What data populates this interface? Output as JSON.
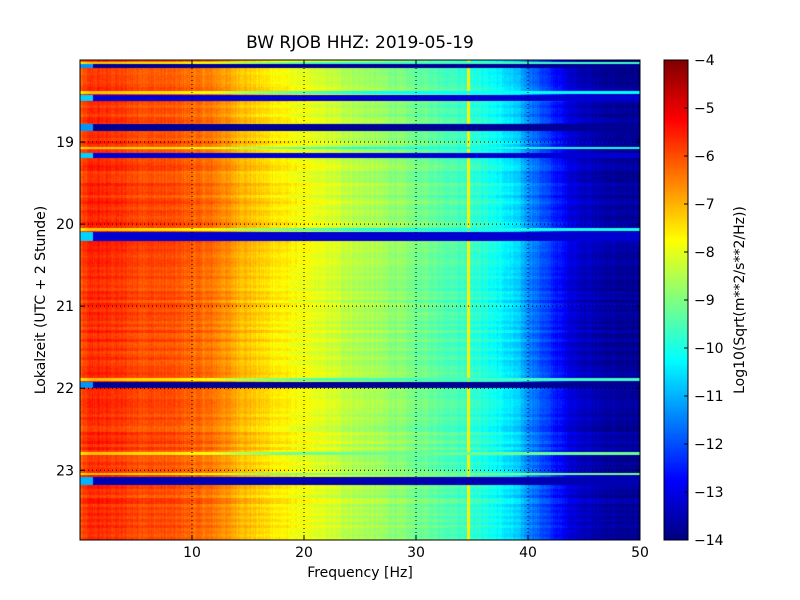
{
  "chart_data": {
    "type": "heatmap",
    "title": "BW RJOB HHZ: 2019-05-19",
    "xlabel": "Frequency [Hz]",
    "ylabel": "Lokalzeit (UTC + 2 Stunde)",
    "colorbar_label": "Log10(Sqrt(m**2/s**2/Hz))",
    "colormap": "jet",
    "xlim": [
      0,
      50
    ],
    "ylim": [
      18.0,
      23.85
    ],
    "y_inverted": true,
    "clim": [
      -14,
      -4
    ],
    "x_ticks": [
      10,
      20,
      30,
      40,
      50
    ],
    "x_tick_labels": [
      "10",
      "20",
      "30",
      "40",
      "50"
    ],
    "y_ticks": [
      19,
      20,
      21,
      22,
      23
    ],
    "y_tick_labels": [
      "19",
      "20",
      "21",
      "22",
      "23"
    ],
    "colorbar_ticks": [
      -4,
      -5,
      -6,
      -7,
      -8,
      -9,
      -10,
      -11,
      -12,
      -13,
      -14
    ],
    "colorbar_tick_labels": [
      "−4",
      "−5",
      "−6",
      "−7",
      "−8",
      "−9",
      "−10",
      "−11",
      "−12",
      "−13",
      "−14"
    ],
    "grid": true,
    "spectrum_profile": {
      "frequency_hz": [
        0,
        1,
        3,
        5,
        8,
        10,
        12,
        14,
        16,
        18,
        20,
        22,
        25,
        28,
        30,
        33,
        35,
        37,
        39,
        40,
        42,
        44,
        46,
        48,
        50
      ],
      "log10_psd": [
        -6.1,
        -5.6,
        -5.7,
        -5.9,
        -6.0,
        -6.2,
        -6.4,
        -6.9,
        -7.3,
        -7.6,
        -7.9,
        -8.1,
        -8.5,
        -8.8,
        -9.1,
        -9.4,
        -9.7,
        -10.1,
        -10.7,
        -11.3,
        -12.3,
        -13.1,
        -13.5,
        -13.7,
        -13.8
      ]
    },
    "low_level_gaps_hours": [
      [
        18.05,
        18.1,
        -13.8
      ],
      [
        18.43,
        18.5,
        -13.2
      ],
      [
        18.78,
        18.86,
        -13.8
      ],
      [
        19.13,
        19.2,
        -13.2
      ],
      [
        20.1,
        20.2,
        -13.2
      ],
      [
        21.92,
        22.0,
        -13.8
      ],
      [
        23.08,
        23.18,
        -13.5
      ]
    ],
    "bright_lines_hours": [
      [
        18.02,
        18.05,
        -9.6
      ],
      [
        18.38,
        18.42,
        -10.2
      ],
      [
        19.06,
        19.09,
        -10.0
      ],
      [
        20.05,
        20.09,
        -10.0
      ],
      [
        21.88,
        21.91,
        -9.6
      ],
      [
        22.78,
        22.82,
        -9.2
      ],
      [
        23.03,
        23.06,
        -9.0
      ]
    ],
    "narrowband_line": {
      "frequency_hz": 34.7,
      "log10_psd": -7.6
    }
  }
}
